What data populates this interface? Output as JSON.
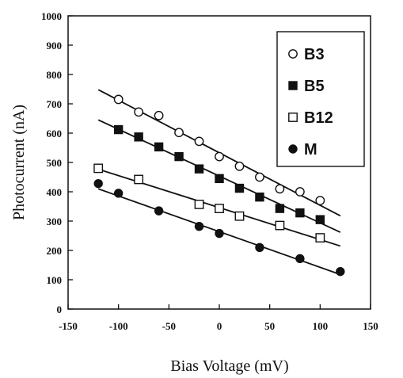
{
  "chart_data": {
    "type": "scatter",
    "xlabel": "Bias Voltage (mV)",
    "ylabel": "Photocurrent (nA)",
    "xlim": [
      -150,
      150
    ],
    "ylim": [
      0,
      1000
    ],
    "x_ticks": [
      -150,
      -100,
      -50,
      0,
      50,
      100,
      150
    ],
    "y_ticks": [
      0,
      100,
      200,
      300,
      400,
      500,
      600,
      700,
      800,
      900,
      1000
    ],
    "x_tick_labels": [
      "-150",
      "-100",
      "-50",
      "0",
      "50",
      "100",
      "150"
    ],
    "y_tick_labels": [
      "0",
      "100",
      "200",
      "300",
      "400",
      "500",
      "600",
      "700",
      "800",
      "900",
      "1000"
    ],
    "grid": false,
    "legend_position": "top-right",
    "series": [
      {
        "name": "B3",
        "marker": "open-circle",
        "x": [
          -100,
          -80,
          -60,
          -40,
          -20,
          0,
          20,
          40,
          60,
          80,
          100
        ],
        "y": [
          715,
          672,
          660,
          602,
          572,
          520,
          487,
          450,
          410,
          400,
          370
        ],
        "fit": {
          "x": [
            -120,
            120
          ],
          "y": [
            748,
            318
          ]
        }
      },
      {
        "name": "B5",
        "marker": "filled-square",
        "x": [
          -100,
          -80,
          -60,
          -40,
          -20,
          0,
          20,
          40,
          60,
          80,
          100
        ],
        "y": [
          612,
          587,
          553,
          520,
          478,
          445,
          412,
          382,
          343,
          328,
          305
        ],
        "fit": {
          "x": [
            -120,
            120
          ],
          "y": [
            645,
            262
          ]
        }
      },
      {
        "name": "B12",
        "marker": "open-square",
        "x": [
          -120,
          -80,
          -20,
          0,
          20,
          60,
          100
        ],
        "y": [
          480,
          442,
          357,
          343,
          317,
          285,
          243
        ],
        "fit": {
          "x": [
            -120,
            120
          ],
          "y": [
            477,
            215
          ]
        }
      },
      {
        "name": "M",
        "marker": "filled-circle",
        "x": [
          -120,
          -100,
          -60,
          -20,
          0,
          40,
          80,
          120
        ],
        "y": [
          428,
          395,
          335,
          282,
          258,
          210,
          172,
          128
        ],
        "fit": {
          "x": [
            -120,
            120
          ],
          "y": [
            410,
            118
          ]
        }
      }
    ]
  }
}
